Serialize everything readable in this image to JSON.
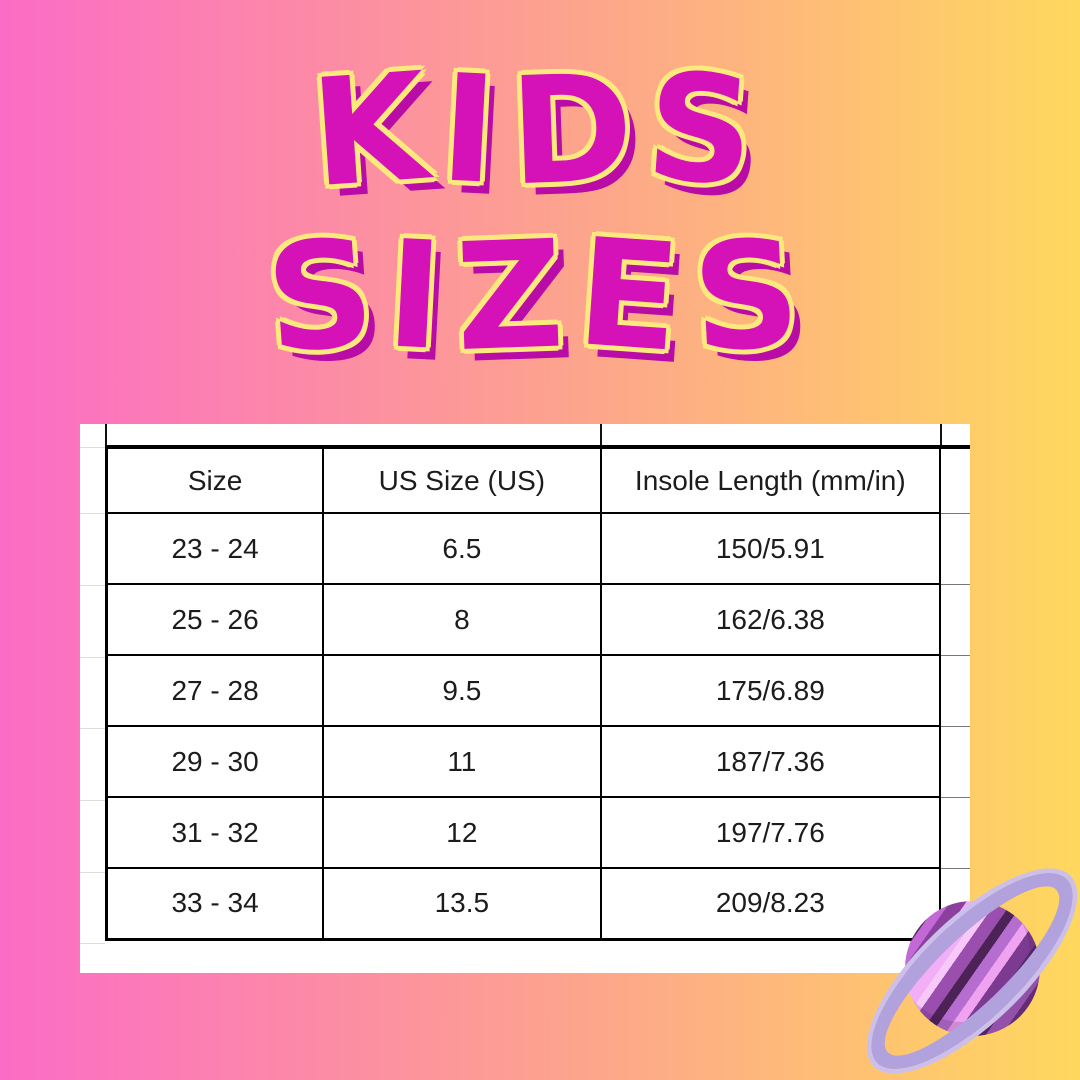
{
  "background": {
    "gradient_left_color": "#fb6cc6",
    "gradient_right_color": "#fed85e"
  },
  "title": {
    "line1": "KIDS",
    "line2": "SIZES",
    "fill_color": "#d511b8",
    "outline_color": "#fce97d",
    "shadow_color": "#b90ba6"
  },
  "size_table": {
    "columns": [
      "Size",
      "US Size (US)",
      "Insole Length (mm/in)"
    ],
    "rows": [
      {
        "size": "23 - 24",
        "us": "6.5",
        "insole": "150/5.91"
      },
      {
        "size": "25 - 26",
        "us": "8",
        "insole": "162/6.38"
      },
      {
        "size": "27 - 28",
        "us": "9.5",
        "insole": "175/6.89"
      },
      {
        "size": "29 - 30",
        "us": "11",
        "insole": "187/7.36"
      },
      {
        "size": "31 - 32",
        "us": "12",
        "insole": "197/7.76"
      },
      {
        "size": "33 - 34",
        "us": "13.5",
        "insole": "209/8.23"
      }
    ]
  },
  "decoration": {
    "icon": "saturn-planet-icon",
    "ring_color": "#b1a1dc",
    "ring_highlight_color": "#ccc0eb",
    "planet_stripe_colors": [
      "#f7c9f9",
      "#f2aef6",
      "#c269d6",
      "#9a4fae",
      "#8b3f9f",
      "#6b2f7e",
      "#5e2a6c",
      "#4c2257"
    ]
  }
}
